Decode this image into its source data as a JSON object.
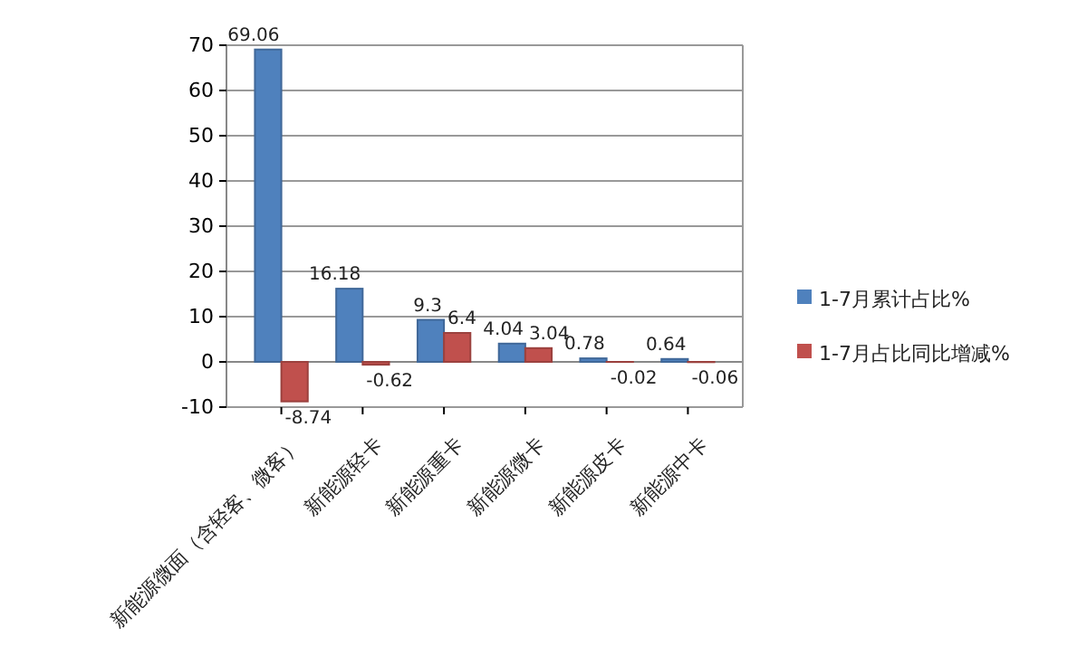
{
  "chart_data": {
    "type": "bar",
    "categories": [
      "新能源微面（含轻客、微客）",
      "新能源轻卡",
      "新能源重卡",
      "新能源微卡",
      "新能源皮卡",
      "新能源中卡"
    ],
    "series": [
      {
        "name": "1-7月累计占比%",
        "color": "#4f81bd",
        "values": [
          69.06,
          16.18,
          9.3,
          4.04,
          0.78,
          0.64
        ]
      },
      {
        "name": "1-7月占比同比增减%",
        "color": "#c0504d",
        "values": [
          -8.74,
          -0.62,
          6.4,
          3.04,
          -0.02,
          -0.06
        ]
      }
    ],
    "ylim": [
      -10,
      70
    ],
    "yticks": [
      -10,
      0,
      10,
      20,
      30,
      40,
      50,
      60,
      70
    ],
    "grid": "y",
    "legend": "right",
    "data_labels": true
  }
}
